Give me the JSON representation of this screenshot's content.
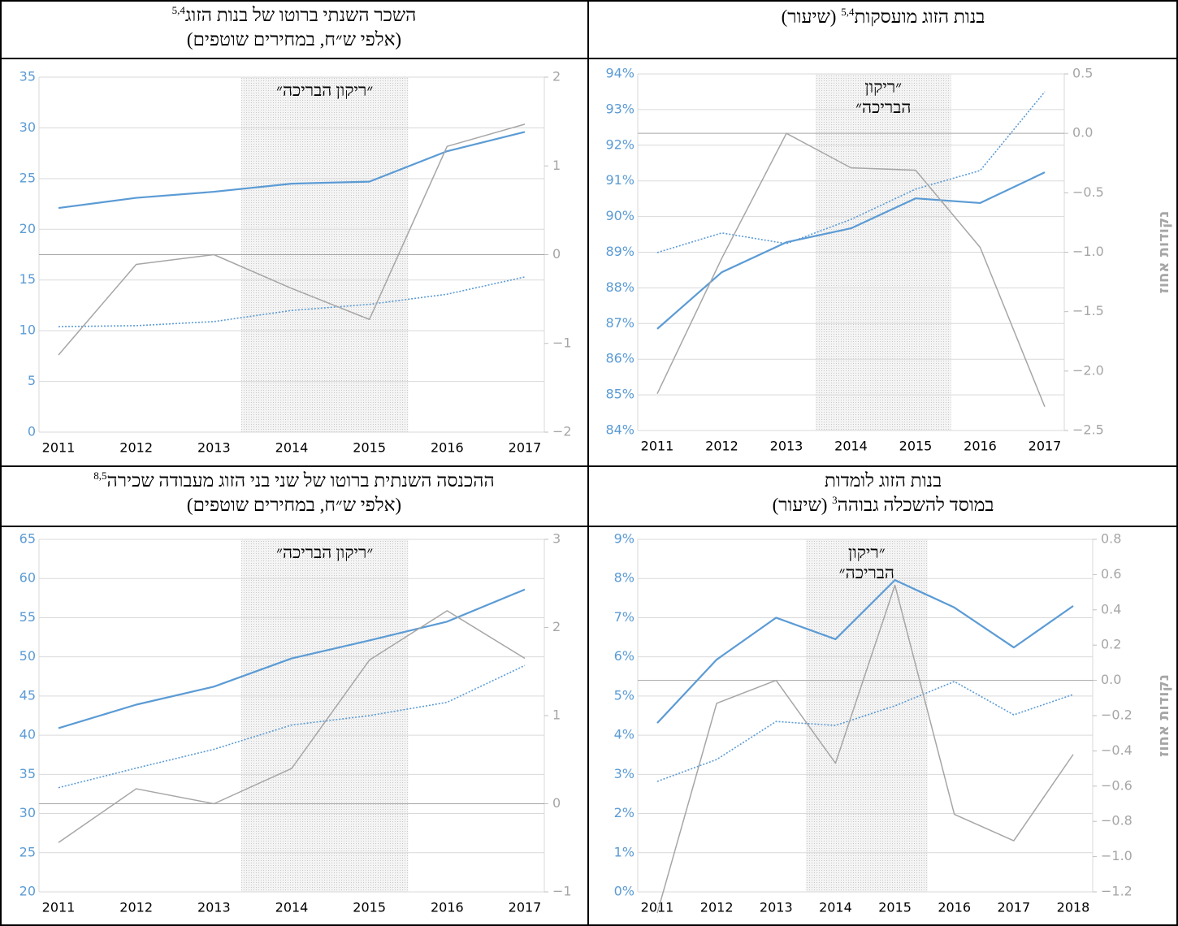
{
  "chart_data": [
    {
      "type": "line",
      "title": [
        {
          "text": "בנות הזוג מועסקות",
          "note": "5,4",
          "after": "(שיעור)"
        }
      ],
      "annotation": [
        "״ריקון",
        "הבריכה״"
      ],
      "shade": [
        2013.45,
        2015.55
      ],
      "categories": [
        "2011",
        "2012",
        "2013",
        "2014",
        "2015",
        "2016",
        "2017"
      ],
      "ylim": [
        84,
        94
      ],
      "yticks": [
        {
          "value": 84,
          "label": "84%"
        },
        {
          "value": 85,
          "label": "85%"
        },
        {
          "value": 86,
          "label": "86%"
        },
        {
          "value": 87,
          "label": "87%"
        },
        {
          "value": 88,
          "label": "88%"
        },
        {
          "value": 89,
          "label": "89%"
        },
        {
          "value": 90,
          "label": "90%"
        },
        {
          "value": 91,
          "label": "91%"
        },
        {
          "value": 92,
          "label": "92%"
        },
        {
          "value": 93,
          "label": "93%"
        },
        {
          "value": 94,
          "label": "94%"
        }
      ],
      "y2lim": [
        -2.5,
        0.5
      ],
      "y2ticks": [
        0.5,
        {
          "value": 0,
          "label": "0.0"
        },
        {
          "value": -0.5,
          "label": "−0.5"
        },
        {
          "value": -1,
          "label": "−1.0"
        },
        {
          "value": -1.5,
          "label": "−1.5"
        },
        {
          "value": -2,
          "label": "−2.0"
        },
        {
          "value": -2.5,
          "label": "−2.5"
        }
      ],
      "y2label": "נקודות אחוז",
      "grid": true,
      "y2_zero_line": true,
      "series": [
        {
          "color": "#5b9bd5",
          "style": "solid",
          "values": [
            86.85,
            88.44,
            89.28,
            89.67,
            90.51,
            90.38,
            91.24
          ]
        },
        {
          "color": "#5b9bd5",
          "style": "dotted",
          "values": [
            88.99,
            89.54,
            89.24,
            89.92,
            90.77,
            91.29,
            93.5
          ]
        },
        {
          "color": "#a6a6a6",
          "style": "solid",
          "axis": "y2",
          "values": [
            -2.19,
            -1.05,
            0.0,
            -0.29,
            -0.31,
            -0.96,
            -2.3
          ]
        }
      ]
    },
    {
      "type": "line",
      "title": [
        {
          "text": "השכר השנתי ברוטו של בנות הזוג",
          "note": "5,4"
        },
        {
          "text": "(אלפי ש״ח, במחירים שוטפים)"
        }
      ],
      "annotation": [
        "״ריקון הבריכה״"
      ],
      "shade": [
        2013.35,
        2015.5
      ],
      "categories": [
        "2011",
        "2012",
        "2013",
        "2014",
        "2015",
        "2016",
        "2017"
      ],
      "ylim": [
        0,
        35
      ],
      "yticks": [
        0,
        5,
        10,
        15,
        20,
        25,
        30,
        35
      ],
      "y2lim": [
        -2,
        2
      ],
      "y2ticks": [
        2,
        1,
        0,
        {
          "value": -1,
          "label": "−1"
        },
        {
          "value": -2,
          "label": "−2"
        }
      ],
      "grid": true,
      "y2_zero_line": true,
      "series": [
        {
          "color": "#5b9bd5",
          "style": "solid",
          "values": [
            22.1,
            23.1,
            23.7,
            24.5,
            24.7,
            27.7,
            29.6
          ]
        },
        {
          "color": "#5b9bd5",
          "style": "dotted",
          "values": [
            10.4,
            10.5,
            10.9,
            12.0,
            12.6,
            13.6,
            15.3
          ]
        },
        {
          "color": "#a6a6a6",
          "style": "solid",
          "axis": "y2",
          "values": [
            -1.13,
            -0.11,
            0.0,
            -0.38,
            -0.73,
            1.22,
            1.47
          ]
        }
      ]
    },
    {
      "type": "line",
      "title": [
        {
          "text": "בנות הזוג לומדות"
        },
        {
          "text": "במוסד להשכלה גבוהה",
          "note": "3",
          "after": "(שיעור)"
        }
      ],
      "annotation": [
        "״ריקון",
        "הבריכה״"
      ],
      "shade": [
        2013.5,
        2015.55
      ],
      "categories": [
        "2011",
        "2012",
        "2013",
        "2014",
        "2015",
        "2016",
        "2017",
        "2018"
      ],
      "ylim": [
        0,
        9
      ],
      "yticks": [
        {
          "value": 0,
          "label": "0%"
        },
        {
          "value": 1,
          "label": "1%"
        },
        {
          "value": 2,
          "label": "2%"
        },
        {
          "value": 3,
          "label": "3%"
        },
        {
          "value": 4,
          "label": "4%"
        },
        {
          "value": 5,
          "label": "5%"
        },
        {
          "value": 6,
          "label": "6%"
        },
        {
          "value": 7,
          "label": "7%"
        },
        {
          "value": 8,
          "label": "8%"
        },
        {
          "value": 9,
          "label": "9%"
        }
      ],
      "y2lim": [
        -1.2,
        0.8
      ],
      "y2ticks": [
        0.8,
        0.6,
        0.4,
        0.2,
        {
          "value": 0,
          "label": "0.0"
        },
        {
          "value": -0.2,
          "label": "−0.2"
        },
        {
          "value": -0.4,
          "label": "−0.4"
        },
        {
          "value": -0.6,
          "label": "−0.6"
        },
        {
          "value": -0.8,
          "label": "−0.8"
        },
        {
          "value": -1,
          "label": "−1.0"
        },
        {
          "value": -1.2,
          "label": "−1.2"
        }
      ],
      "y2label": "נקודות אחוז",
      "grid": true,
      "y2_zero_line": true,
      "series": [
        {
          "color": "#5b9bd5",
          "style": "solid",
          "values": [
            4.31,
            5.93,
            7.0,
            6.45,
            7.96,
            7.26,
            6.24,
            7.3
          ]
        },
        {
          "color": "#5b9bd5",
          "style": "dotted",
          "values": [
            2.82,
            3.38,
            4.35,
            4.25,
            4.75,
            5.37,
            4.52,
            5.04
          ]
        },
        {
          "color": "#a6a6a6",
          "style": "solid",
          "axis": "y2",
          "values": [
            -1.32,
            -0.13,
            0.0,
            -0.47,
            0.54,
            -0.76,
            -0.91,
            -0.42
          ]
        }
      ]
    },
    {
      "type": "line",
      "title": [
        {
          "text": "ההכנסה השנתית ברוטו של שני בני הזוג מעבודה שכירה",
          "note": "8,5"
        },
        {
          "text": "(אלפי ש״ח, במחירים שוטפים)"
        }
      ],
      "annotation": [
        "״ריקון הבריכה״"
      ],
      "shade": [
        2013.35,
        2015.5
      ],
      "categories": [
        "2011",
        "2012",
        "2013",
        "2014",
        "2015",
        "2016",
        "2017"
      ],
      "ylim": [
        20,
        65
      ],
      "yticks": [
        20,
        25,
        30,
        35,
        40,
        45,
        50,
        55,
        60,
        65
      ],
      "y2lim": [
        -1,
        3
      ],
      "y2ticks": [
        3,
        2,
        1,
        0,
        {
          "value": -1,
          "label": "−1"
        }
      ],
      "grid": true,
      "y2_zero_line": true,
      "series": [
        {
          "color": "#5b9bd5",
          "style": "solid",
          "values": [
            40.9,
            43.9,
            46.2,
            49.8,
            52.1,
            54.5,
            58.6
          ]
        },
        {
          "color": "#5b9bd5",
          "style": "dotted",
          "values": [
            33.3,
            35.8,
            38.2,
            41.3,
            42.5,
            44.2,
            48.9
          ]
        },
        {
          "color": "#a6a6a6",
          "style": "solid",
          "axis": "y2",
          "values": [
            -0.44,
            0.17,
            0.0,
            0.4,
            1.63,
            2.19,
            1.65
          ]
        }
      ]
    }
  ]
}
